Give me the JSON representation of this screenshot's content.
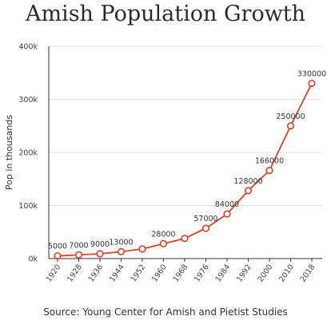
{
  "chart_data": {
    "type": "line",
    "title": "Amish Population Growth",
    "ylabel": "Pop in thousands",
    "xlabel": "",
    "ylim": [
      0,
      400000
    ],
    "y_ticks": [
      {
        "value": 0,
        "label": "0k"
      },
      {
        "value": 100000,
        "label": "100k"
      },
      {
        "value": 200000,
        "label": "200k"
      },
      {
        "value": 300000,
        "label": "300k"
      },
      {
        "value": 400000,
        "label": "400k"
      }
    ],
    "categories": [
      "1920",
      "1928",
      "1936",
      "1944",
      "1952",
      "1960",
      "1968",
      "1976",
      "1984",
      "1992",
      "2000",
      "2010",
      "2018"
    ],
    "values": [
      5000,
      7000,
      9000,
      13000,
      18000,
      28000,
      38000,
      57000,
      84000,
      128000,
      166000,
      250000,
      330000
    ],
    "data_labels": [
      "5000",
      "7000",
      "9000",
      "13000",
      "",
      "28000",
      "",
      "57000",
      "84000",
      "128000",
      "166000",
      "250000",
      "330000"
    ],
    "grid": true,
    "line_color": "#d9402b",
    "source": "Source: Young Center for Amish and Pietist Studies"
  }
}
